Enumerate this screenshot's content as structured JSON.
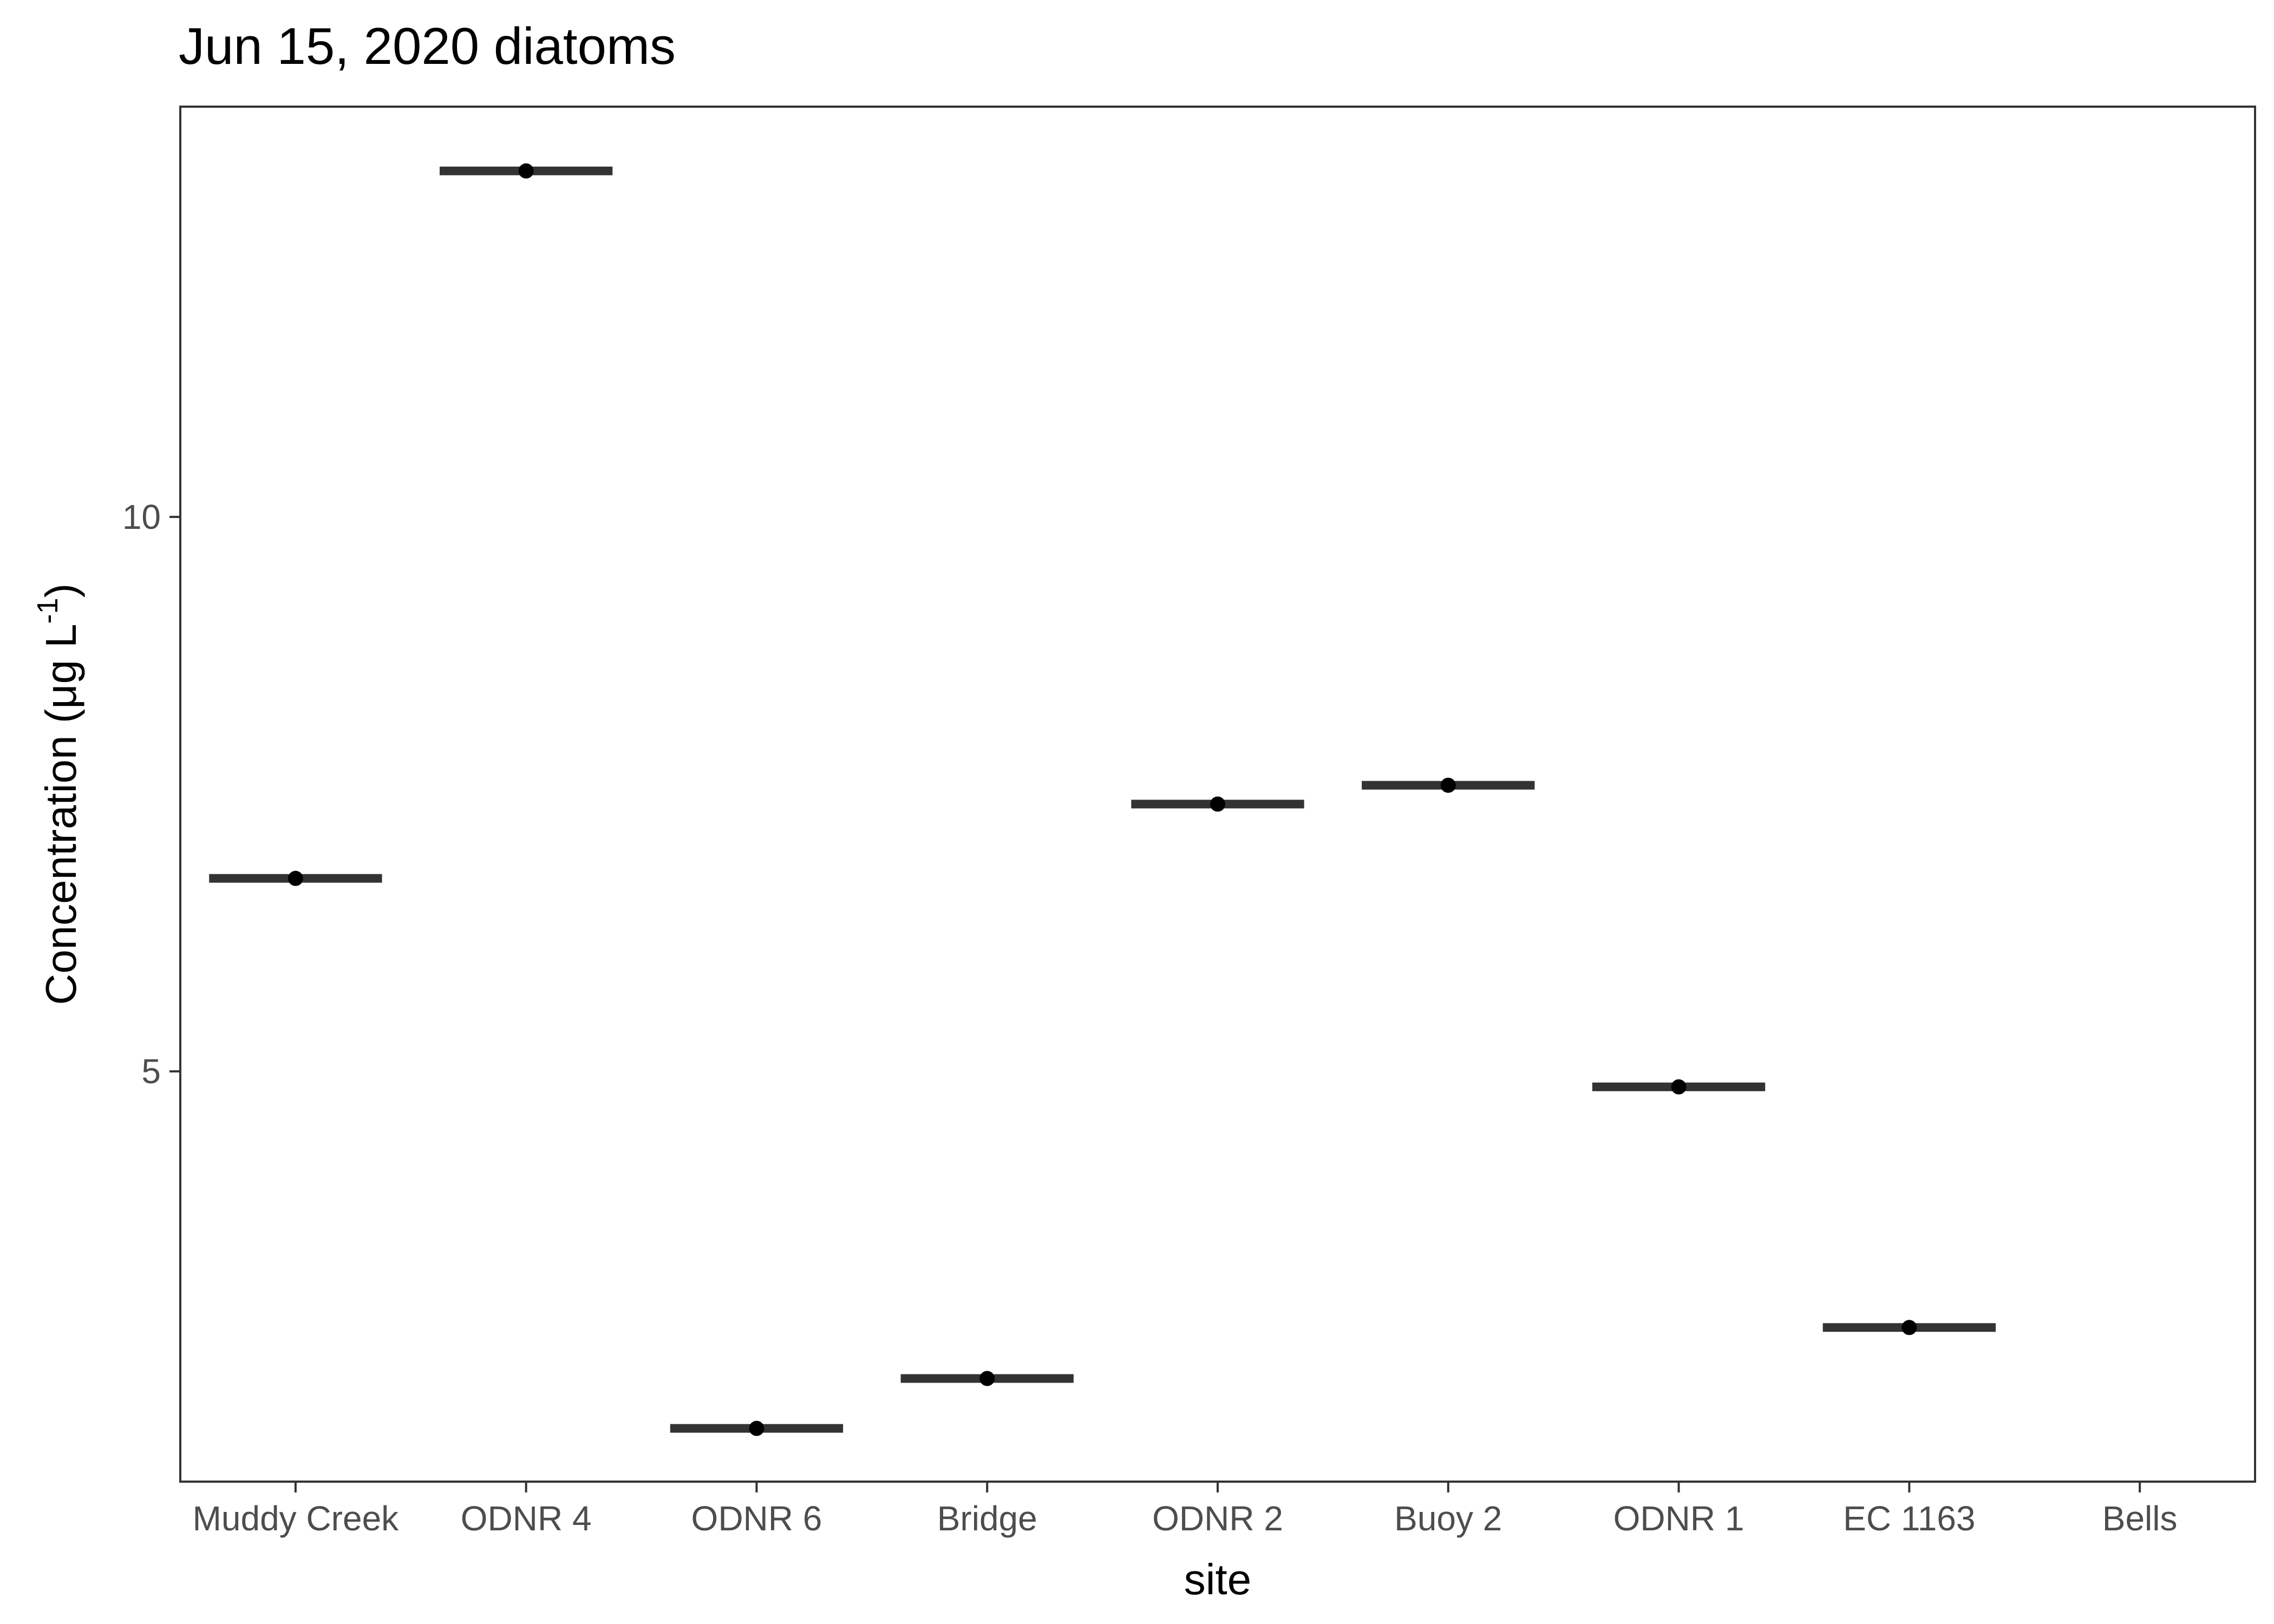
{
  "chart_data": {
    "type": "boxplot",
    "title": "Jun 15, 2020 diatoms",
    "xlabel": "site",
    "ylabel": {
      "main": "Concentration (μg L",
      "superscript": "-1",
      "close": ")"
    },
    "categories": [
      "Muddy Creek",
      "ODNR 4",
      "ODNR 6",
      "Bridge",
      "ODNR 2",
      "Buoy 2",
      "ODNR 1",
      "EC 1163",
      "Bells"
    ],
    "values": [
      6.74,
      13.12,
      1.78,
      2.23,
      7.41,
      7.58,
      4.86,
      2.69,
      null
    ],
    "ylim": [
      1.3,
      13.7
    ],
    "yticks": [
      5,
      10
    ],
    "grid": false,
    "legend": "none",
    "colors": {
      "median_line": "#333333",
      "point": "#000000",
      "panel_border": "#333333",
      "tick_text": "#4d4d4d",
      "title_text": "#000000"
    }
  }
}
